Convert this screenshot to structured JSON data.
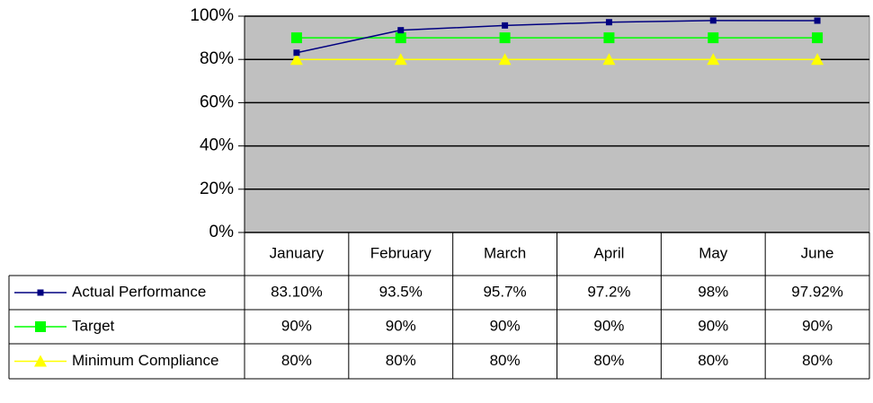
{
  "chart_data": {
    "type": "line",
    "categories": [
      "January",
      "February",
      "March",
      "April",
      "May",
      "June"
    ],
    "series": [
      {
        "name": "Actual Performance",
        "color": "#000080",
        "marker": "small-square",
        "values": [
          83.1,
          93.5,
          95.7,
          97.2,
          98,
          97.92
        ],
        "value_labels": [
          "83.10%",
          "93.5%",
          "95.7%",
          "97.2%",
          "98%",
          "97.92%"
        ]
      },
      {
        "name": "Target",
        "color": "#00ff00",
        "marker": "square",
        "values": [
          90,
          90,
          90,
          90,
          90,
          90
        ],
        "value_labels": [
          "90%",
          "90%",
          "90%",
          "90%",
          "90%",
          "90%"
        ]
      },
      {
        "name": "Minimum Compliance",
        "color": "#ffff00",
        "marker": "triangle",
        "values": [
          80,
          80,
          80,
          80,
          80,
          80
        ],
        "value_labels": [
          "80%",
          "80%",
          "80%",
          "80%",
          "80%",
          "80%"
        ]
      }
    ],
    "ylim": [
      0,
      100
    ],
    "yticks": [
      {
        "value": 0,
        "label": "0%"
      },
      {
        "value": 20,
        "label": "20%"
      },
      {
        "value": 40,
        "label": "40%"
      },
      {
        "value": 60,
        "label": "60%"
      },
      {
        "value": 80,
        "label": "80%"
      },
      {
        "value": 100,
        "label": "100%"
      }
    ],
    "grid": true,
    "plot_background": "#c0c0c0"
  }
}
